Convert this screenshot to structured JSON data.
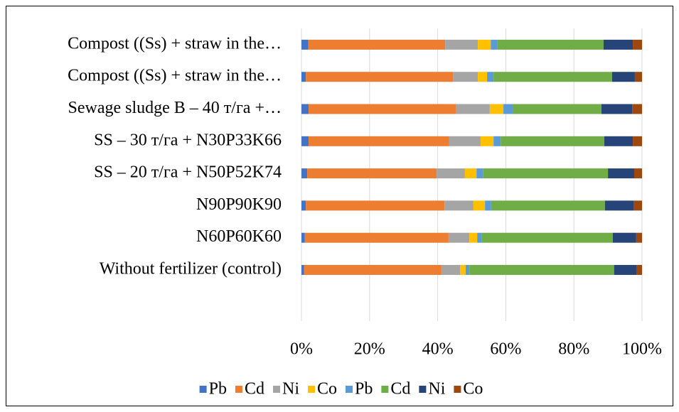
{
  "chart_data": {
    "type": "bar",
    "orientation": "horizontal",
    "stacked": "percent",
    "categories": [
      "Without fertilizer (control)",
      "N60P60K60",
      "N90P90K90",
      "SS – 20 т/га + N50P52K74",
      "SS – 30 т/га + N30P33K66",
      "Sewage sludge B – 40 т/га +…",
      "Compost ((Ss) + straw in the…",
      "Compost ((Ss) + straw in the…"
    ],
    "series": [
      {
        "name": "Pb",
        "color": "#4472c4",
        "values": [
          0.8,
          1,
          1.3,
          1.7,
          2.1,
          2.1,
          1.3,
          2
        ]
      },
      {
        "name": "Cd",
        "color": "#ed7d31",
        "values": [
          40.3,
          42.2,
          40.7,
          38,
          41.3,
          43.2,
          43.2,
          40.2
        ]
      },
      {
        "name": "Ni",
        "color": "#a5a5a5",
        "values": [
          5.5,
          6.1,
          8.5,
          8.3,
          9.2,
          10,
          7.3,
          9.6
        ]
      },
      {
        "name": "Co",
        "color": "#ffc000",
        "values": [
          1.6,
          2.3,
          3.4,
          3.4,
          3.8,
          4,
          2.7,
          3.8
        ]
      },
      {
        "name": "Pb",
        "color": "#5b9bd5",
        "values": [
          1.1,
          1.4,
          1.8,
          2,
          2.1,
          2.7,
          1.9,
          2
        ]
      },
      {
        "name": "Cd",
        "color": "#70ad47",
        "values": [
          42.5,
          38.4,
          33.4,
          36.6,
          30.4,
          26.1,
          34.8,
          31.1
        ]
      },
      {
        "name": "Ni",
        "color": "#264478",
        "values": [
          6.7,
          6.9,
          8.4,
          7.7,
          8.4,
          9,
          6.7,
          8.6
        ]
      },
      {
        "name": "Co",
        "color": "#9e480e",
        "values": [
          1.5,
          1.7,
          2.5,
          2.3,
          2.7,
          2.9,
          2.1,
          2.7
        ]
      }
    ],
    "xlim": [
      0,
      100
    ],
    "xticks": [
      {
        "value": 0,
        "label": "0%"
      },
      {
        "value": 20,
        "label": "20%"
      },
      {
        "value": 40,
        "label": "40%"
      },
      {
        "value": 60,
        "label": "60%"
      },
      {
        "value": 80,
        "label": "80%"
      },
      {
        "value": 100,
        "label": "100%"
      }
    ],
    "grid": true,
    "legend": "bottom"
  }
}
